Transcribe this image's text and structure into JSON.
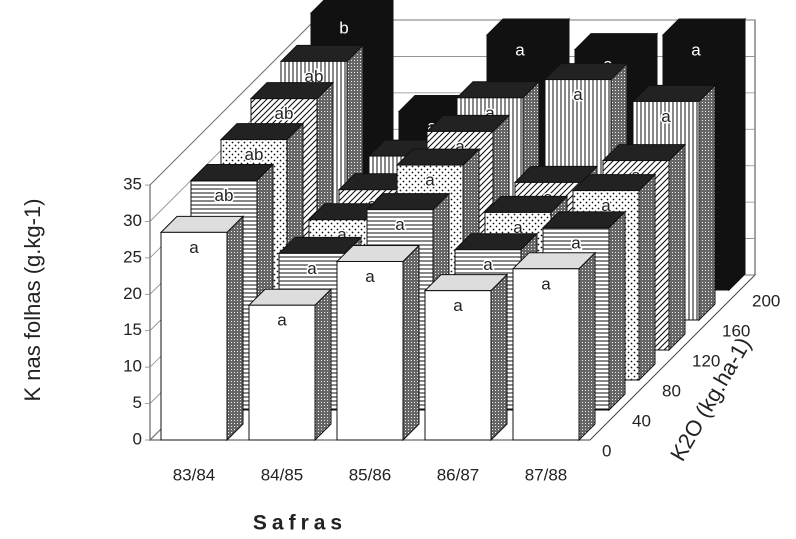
{
  "chart_data": {
    "type": "bar3d",
    "x_label": "Safras",
    "y_label": "K nas folhas (g.kg-1)",
    "z_label": "K2O (kg.ha-1)",
    "categories": [
      "83/84",
      "84/85",
      "85/86",
      "86/87",
      "87/88"
    ],
    "ylim": [
      0,
      35
    ],
    "yticks": [
      0,
      5,
      10,
      15,
      20,
      25,
      30,
      35
    ],
    "grid": true,
    "series": [
      {
        "name": "0",
        "pattern": "white",
        "values": [
          28.5,
          18.5,
          24.5,
          20.5,
          23.5
        ],
        "letters": [
          "a",
          "a",
          "a",
          "a",
          "a"
        ]
      },
      {
        "name": "40",
        "pattern": "hlines",
        "values": [
          31.5,
          21.5,
          27.5,
          22,
          25
        ],
        "letters": [
          "ab",
          "a",
          "a",
          "a",
          "a"
        ]
      },
      {
        "name": "80",
        "pattern": "dots",
        "values": [
          33,
          22,
          29.5,
          23,
          26
        ],
        "letters": [
          "ab",
          "a",
          "a",
          "a",
          "a"
        ]
      },
      {
        "name": "120",
        "pattern": "diag",
        "values": [
          34.5,
          22,
          30,
          23,
          26
        ],
        "letters": [
          "ab",
          "a",
          "a",
          "a",
          "a"
        ]
      },
      {
        "name": "160",
        "pattern": "vlines",
        "values": [
          35.5,
          22.5,
          30.5,
          33,
          30
        ],
        "letters": [
          "ab",
          "a",
          "a",
          "a",
          "a"
        ]
      },
      {
        "name": "200",
        "pattern": "black",
        "values": [
          38,
          24.5,
          35,
          33,
          35
        ],
        "letters": [
          "b",
          "a",
          "a",
          "a",
          "a"
        ]
      }
    ]
  }
}
